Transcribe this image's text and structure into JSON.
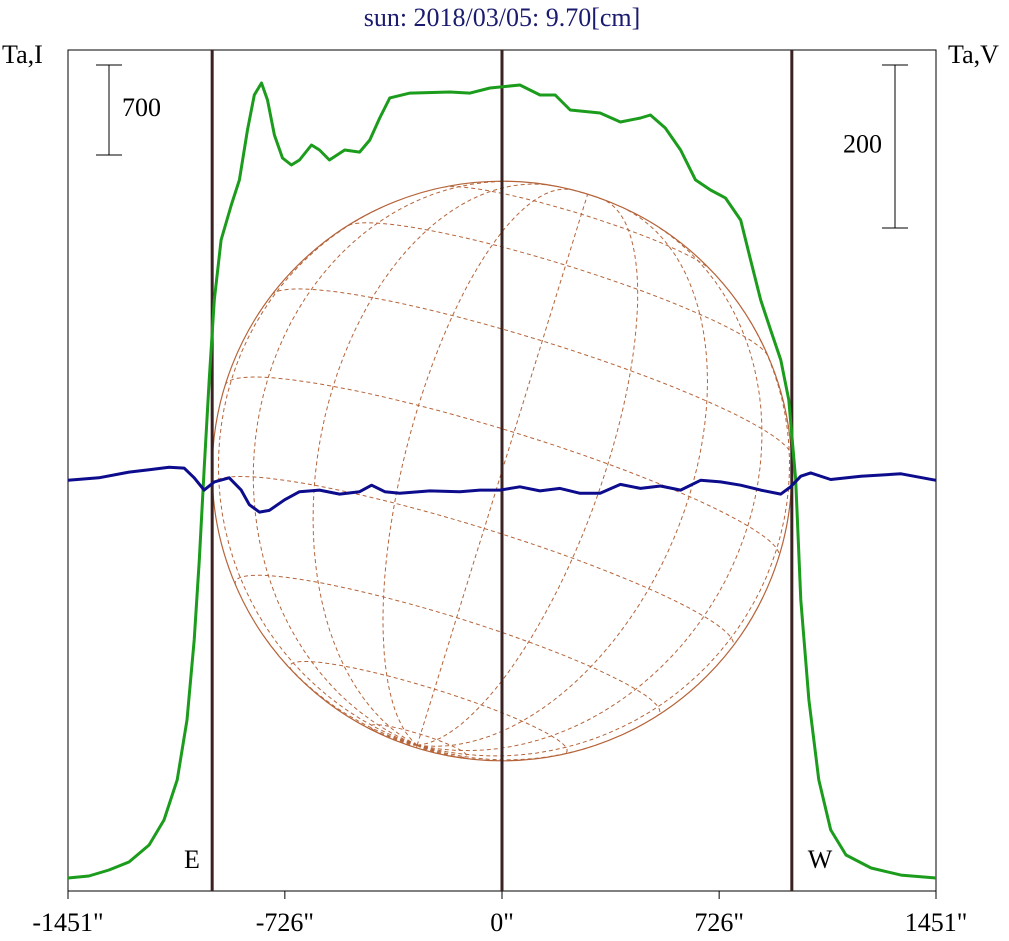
{
  "chart_data": {
    "type": "line",
    "title": "sun: 2018/03/05: 9.70[cm]",
    "ylabel": "Ta,I",
    "y2label": "Ta,V",
    "annotations": [
      "E",
      "W"
    ],
    "xlim": [
      -1451,
      1451
    ],
    "xticks": [
      {
        "value": -1451,
        "label": "-1451\""
      },
      {
        "value": -726,
        "label": "-726\""
      },
      {
        "value": 0,
        "label": "0\""
      },
      {
        "value": 726,
        "label": "726\""
      },
      {
        "value": 1451,
        "label": "1451\""
      }
    ],
    "ylim": [
      0,
      6543
    ],
    "y2lim": [
      -492,
      540
    ],
    "markers": [
      -969,
      0,
      969
    ],
    "scale_bars": [
      {
        "value": 700,
        "axis": "y"
      },
      {
        "value": 200,
        "axis": "y2"
      }
    ],
    "series": [
      {
        "name": "I",
        "color": "#1c9c1c",
        "axis": "y",
        "x": [
          -1451,
          -1381,
          -1314,
          -1247,
          -1180,
          -1130,
          -1086,
          -1053,
          -1029,
          -1012,
          -996,
          -979,
          -962,
          -939,
          -905,
          -878,
          -851,
          -828,
          -804,
          -784,
          -761,
          -734,
          -704,
          -677,
          -637,
          -610,
          -577,
          -526,
          -476,
          -442,
          -409,
          -375,
          -308,
          -174,
          -107,
          -40,
          60,
          127,
          178,
          228,
          328,
          396,
          463,
          496,
          546,
          597,
          647,
          697,
          747,
          798,
          831,
          865,
          898,
          932,
          959,
          982,
          999,
          1026,
          1059,
          1099,
          1150,
          1234,
          1334,
          1451
        ],
        "values": [
          101,
          117,
          163,
          226,
          358,
          552,
          864,
          1330,
          1953,
          2575,
          3275,
          3976,
          4598,
          5065,
          5337,
          5532,
          5921,
          6193,
          6286,
          6154,
          5882,
          5703,
          5648,
          5687,
          5804,
          5765,
          5687,
          5765,
          5749,
          5843,
          6014,
          6170,
          6208,
          6216,
          6208,
          6247,
          6271,
          6193,
          6193,
          6076,
          6053,
          5983,
          6014,
          6037,
          5936,
          5765,
          5532,
          5454,
          5392,
          5220,
          4909,
          4598,
          4365,
          4131,
          3820,
          3198,
          2264,
          1486,
          864,
          475,
          280,
          179,
          124,
          101
        ]
      },
      {
        "name": "V",
        "color": "#0c0c8c",
        "axis": "y2",
        "x": [
          -1451,
          -1348,
          -1247,
          -1180,
          -1113,
          -1063,
          -1029,
          -996,
          -962,
          -912,
          -872,
          -845,
          -811,
          -778,
          -727,
          -677,
          -610,
          -543,
          -476,
          -436,
          -392,
          -342,
          -241,
          -141,
          -74,
          -7,
          60,
          127,
          194,
          261,
          328,
          396,
          463,
          530,
          597,
          664,
          731,
          798,
          865,
          932,
          965,
          999,
          1032,
          1099,
          1200,
          1334,
          1451
        ],
        "values": [
          12,
          15,
          22,
          25,
          28,
          27,
          15,
          0,
          10,
          15,
          0,
          -18,
          -27,
          -25,
          -12,
          -2,
          0,
          -5,
          -2,
          6,
          -2,
          -4,
          -1,
          -2,
          0,
          0,
          4,
          -1,
          2,
          -4,
          -4,
          7,
          2,
          5,
          0,
          12,
          10,
          6,
          0,
          -5,
          4,
          17,
          21,
          13,
          17,
          20,
          12
        ]
      }
    ]
  }
}
